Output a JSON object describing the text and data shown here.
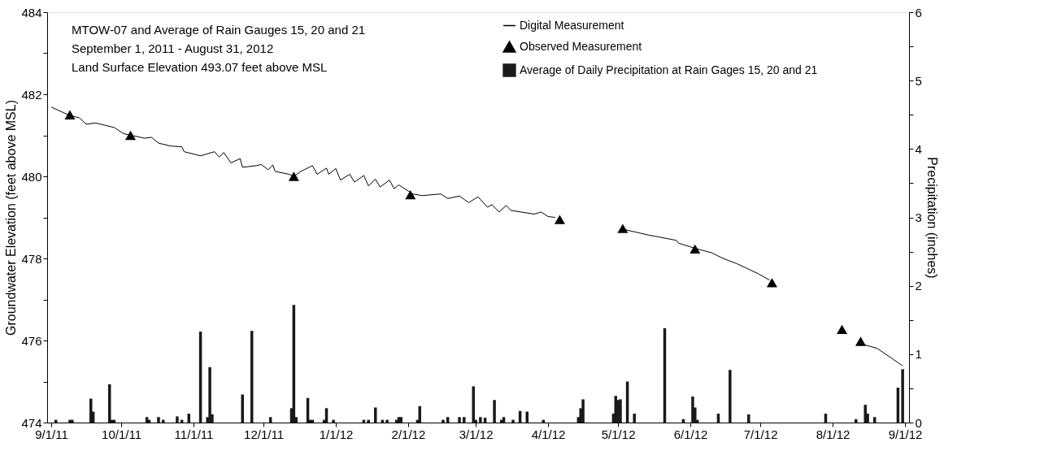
{
  "chart_data": {
    "type": "line",
    "annotations": [
      "MTOW-07 and Average of Rain Gauges 15, 20 and 21",
      "September 1, 2011 - August 31, 2012",
      "Land Surface Elevation 493.07 feet above MSL"
    ],
    "ylabel": "Groundwater Elevation (feet above MSL)",
    "y2label": "Precipitation (inches)",
    "xlim": [
      "2011-09-01",
      "2012-09-01"
    ],
    "xticks": [
      {
        "value": "2011-09-01",
        "label": "9/1/11"
      },
      {
        "value": "2011-10-01",
        "label": "10/1/11"
      },
      {
        "value": "2011-11-01",
        "label": "11/1/11"
      },
      {
        "value": "2011-12-01",
        "label": "12/1/11"
      },
      {
        "value": "2012-01-01",
        "label": "1/1/12"
      },
      {
        "value": "2012-02-01",
        "label": "2/1/12"
      },
      {
        "value": "2012-03-01",
        "label": "3/1/12"
      },
      {
        "value": "2012-04-01",
        "label": "4/1/12"
      },
      {
        "value": "2012-05-01",
        "label": "5/1/12"
      },
      {
        "value": "2012-06-01",
        "label": "6/1/12"
      },
      {
        "value": "2012-07-01",
        "label": "7/1/12"
      },
      {
        "value": "2012-08-01",
        "label": "8/1/12"
      },
      {
        "value": "2012-09-01",
        "label": "9/1/12"
      }
    ],
    "ylim": [
      474,
      484
    ],
    "yticks": [
      474,
      {
        "value": 475,
        "label": null
      },
      476,
      {
        "value": 477,
        "label": null
      },
      478,
      {
        "value": 479,
        "label": null
      },
      480,
      {
        "value": 481,
        "label": null
      },
      482,
      {
        "value": 483,
        "label": null
      },
      484
    ],
    "y2lim": [
      0,
      6
    ],
    "y2ticks": [
      0,
      {
        "value": 0.5,
        "label": null
      },
      1,
      {
        "value": 1.5,
        "label": null
      },
      2,
      {
        "value": 2.5,
        "label": null
      },
      3,
      {
        "value": 3.5,
        "label": null
      },
      4,
      {
        "value": 4.5,
        "label": null
      },
      5,
      {
        "value": 5.5,
        "label": null
      },
      6
    ],
    "grid": false,
    "legend": "top",
    "series": [
      {
        "name": "Digital Measurement",
        "color": "#000000",
        "line_style": "solid",
        "marker": "none",
        "x": [
          "2011-09-01",
          "2011-09-09",
          "2011-09-13",
          "2011-09-16",
          "2011-09-20",
          "2011-09-28",
          "2011-10-02",
          "2011-10-11",
          "2011-10-14",
          "2011-10-17",
          "2011-10-22",
          "2011-10-27",
          "2011-10-28",
          "2011-11-04",
          "2011-11-10",
          "2011-11-12",
          "2011-11-14",
          "2011-11-17",
          "2011-11-21",
          "2011-11-22",
          "2011-11-28",
          "2011-11-30",
          "2011-12-03",
          "2011-12-05",
          "2011-12-06",
          "2011-12-12",
          "2011-12-14",
          "2011-12-17",
          "2011-12-22",
          "2011-12-24",
          "2011-12-28",
          "2011-12-29",
          "2012-01-01",
          "2012-01-03",
          "2012-01-07",
          "2012-01-09",
          "2012-01-13",
          "2012-01-15",
          "2012-01-18",
          "2012-01-20",
          "2012-01-24",
          "2012-01-26",
          "2012-01-28",
          "2012-02-03",
          "2012-02-07",
          "2012-02-15",
          "2012-02-18",
          "2012-02-23",
          "2012-02-27",
          "2012-03-02",
          "2012-03-06",
          "2012-03-08",
          "2012-03-11",
          "2012-03-14",
          "2012-03-16",
          "2012-03-26",
          "2012-03-29",
          "2012-04-01",
          "2012-04-04",
          "2012-04-18",
          "2012-05-04",
          "2012-05-14",
          "2012-05-26",
          "2012-05-27",
          "2012-06-04",
          "2012-06-10",
          "2012-06-15",
          "2012-06-21",
          "2012-06-30",
          "2012-07-05",
          "2012-07-17",
          "2012-08-13",
          "2012-08-20",
          "2012-08-26",
          "2012-08-31"
        ],
        "values": [
          481.69,
          481.48,
          481.43,
          481.27,
          481.3,
          481.19,
          481.04,
          480.93,
          480.95,
          480.81,
          480.74,
          480.72,
          480.6,
          480.5,
          480.6,
          480.47,
          480.58,
          480.33,
          480.43,
          480.22,
          480.26,
          480.29,
          480.16,
          480.28,
          480.12,
          480.05,
          480.0,
          480.12,
          480.26,
          480.05,
          480.2,
          480.05,
          480.19,
          479.91,
          480.05,
          479.86,
          480.02,
          479.77,
          479.93,
          479.74,
          479.91,
          479.7,
          479.79,
          479.57,
          479.53,
          479.57,
          479.46,
          479.52,
          479.36,
          479.5,
          479.25,
          479.31,
          479.13,
          479.29,
          479.17,
          479.08,
          479.13,
          479.02,
          479.0,
          null,
          478.7,
          478.57,
          478.44,
          478.37,
          478.23,
          478.14,
          478.0,
          477.87,
          477.63,
          477.47,
          null,
          475.92,
          475.81,
          475.58,
          475.38
        ]
      },
      {
        "name": "Observed Measurement",
        "type": "scatter",
        "color": "#000000",
        "marker": "triangle",
        "x": [
          "2011-09-09",
          "2011-10-05",
          "2011-12-14",
          "2012-02-02",
          "2012-04-06",
          "2012-05-03",
          "2012-06-03",
          "2012-07-06",
          "2012-08-05",
          "2012-08-13"
        ],
        "values": [
          481.5,
          481.0,
          480.0,
          479.55,
          478.95,
          478.73,
          478.23,
          477.41,
          476.27,
          475.98
        ]
      },
      {
        "name": "Average of Daily Precipitation at Rain Gages 15, 20 and 21",
        "type": "bar",
        "axis": "y2",
        "color": "#1a1a1a",
        "x": [
          "2011-09-03",
          "2011-09-09",
          "2011-09-10",
          "2011-09-18",
          "2011-09-19",
          "2011-09-26",
          "2011-09-27",
          "2011-09-28",
          "2011-10-12",
          "2011-10-13",
          "2011-10-17",
          "2011-10-19",
          "2011-10-25",
          "2011-10-27",
          "2011-10-30",
          "2011-11-04",
          "2011-11-07",
          "2011-11-08",
          "2011-11-09",
          "2011-11-22",
          "2011-11-26",
          "2011-12-04",
          "2011-12-13",
          "2011-12-14",
          "2011-12-15",
          "2011-12-20",
          "2011-12-21",
          "2011-12-22",
          "2011-12-27",
          "2011-12-28",
          "2011-12-31",
          "2012-01-13",
          "2012-01-15",
          "2012-01-18",
          "2012-01-21",
          "2012-01-23",
          "2012-01-27",
          "2012-01-28",
          "2012-01-29",
          "2012-02-05",
          "2012-02-06",
          "2012-02-16",
          "2012-02-18",
          "2012-02-23",
          "2012-02-25",
          "2012-02-29",
          "2012-03-01",
          "2012-03-03",
          "2012-03-05",
          "2012-03-09",
          "2012-03-12",
          "2012-03-13",
          "2012-03-17",
          "2012-03-20",
          "2012-03-23",
          "2012-03-30",
          "2012-04-14",
          "2012-04-15",
          "2012-04-16",
          "2012-04-29",
          "2012-04-30",
          "2012-05-01",
          "2012-05-02",
          "2012-05-05",
          "2012-05-08",
          "2012-05-21",
          "2012-05-29",
          "2012-06-02",
          "2012-06-03",
          "2012-06-04",
          "2012-06-13",
          "2012-06-18",
          "2012-06-26",
          "2012-07-29",
          "2012-08-11",
          "2012-08-15",
          "2012-08-16",
          "2012-08-19",
          "2012-08-29",
          "2012-08-31"
        ],
        "values": [
          0.04,
          0.04,
          0.04,
          0.35,
          0.16,
          0.56,
          0.04,
          0.04,
          0.08,
          0.04,
          0.08,
          0.04,
          0.09,
          0.04,
          0.13,
          1.33,
          0.08,
          0.81,
          0.12,
          0.41,
          1.34,
          0.08,
          0.21,
          1.72,
          0.08,
          0.36,
          0.04,
          0.04,
          0.04,
          0.21,
          0.04,
          0.04,
          0.04,
          0.22,
          0.04,
          0.04,
          0.04,
          0.08,
          0.08,
          0.04,
          0.24,
          0.04,
          0.08,
          0.08,
          0.08,
          0.53,
          0.04,
          0.08,
          0.07,
          0.33,
          0.04,
          0.08,
          0.04,
          0.17,
          0.16,
          0.04,
          0.08,
          0.21,
          0.34,
          0.13,
          0.39,
          0.33,
          0.34,
          0.6,
          0.13,
          1.38,
          0.05,
          0.38,
          0.22,
          0.04,
          0.13,
          0.77,
          0.12,
          0.13,
          0.05,
          0.26,
          0.13,
          0.08,
          0.51,
          0.78
        ]
      }
    ]
  }
}
